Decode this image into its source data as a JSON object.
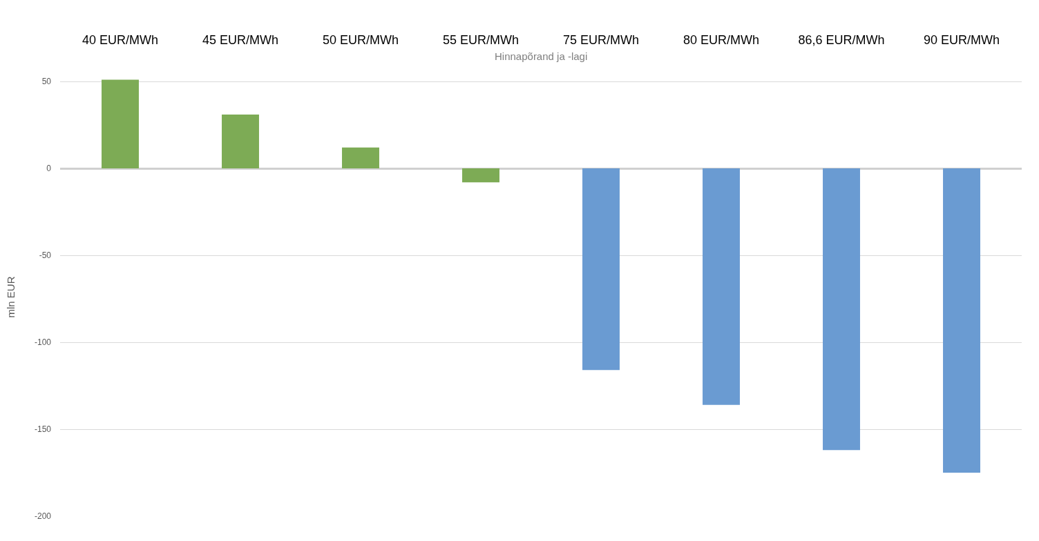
{
  "chart_data": {
    "type": "bar",
    "xlabel": "Hinnapõrand ja -lagi",
    "ylabel": "mln EUR",
    "categories": [
      "40 EUR/MWh",
      "45 EUR/MWh",
      "50 EUR/MWh",
      "55 EUR/MWh",
      "75 EUR/MWh",
      "80 EUR/MWh",
      "86,6 EUR/MWh",
      "90 EUR/MWh"
    ],
    "values": [
      51,
      31,
      12,
      -8,
      -116,
      -136,
      -162,
      -175
    ],
    "colors": [
      "#7dab55",
      "#7dab55",
      "#7dab55",
      "#7dab55",
      "#6a9bd2",
      "#6a9bd2",
      "#6a9bd2",
      "#6a9bd2"
    ],
    "ylim": [
      -200,
      52
    ],
    "yticks": [
      50,
      0,
      -50,
      -100,
      -150,
      -200
    ],
    "grid": "y"
  }
}
